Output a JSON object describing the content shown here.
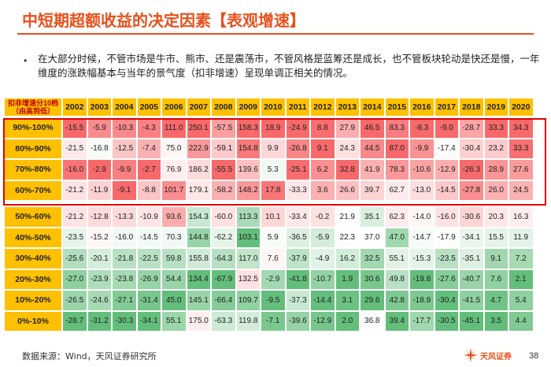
{
  "title": "中短期超额收益的决定因素【表观增速】",
  "bullet": "在大部分时候，不管市场是牛市、熊市、还是震荡市，不管风格是蓝筹还是成长，也不管板块轮动是快还是慢，一年维度的涨跌幅基本与当年的景气度（扣非增速）呈现单调正相关的情况。",
  "header": {
    "corner_line1": "扣非增速分10档",
    "corner_line2": "（由高到低）",
    "years": [
      "2002",
      "2003",
      "2004",
      "2005",
      "2006",
      "2007",
      "2008",
      "2009",
      "2010",
      "2011",
      "2012",
      "2013",
      "2014",
      "2015",
      "2016",
      "2017",
      "2018",
      "2019",
      "2020"
    ]
  },
  "rows": [
    {
      "label": "90%-100%",
      "values": [
        "-15.5",
        "-5.9",
        "-10.3",
        "-4.3",
        "111.0",
        "250.1",
        "-57.5",
        "158.3",
        "18.9",
        "-24.9",
        "8.8",
        "27.9",
        "46.5",
        "83.3",
        "-8.3",
        "-9.0",
        "-28.7",
        "33.3",
        "34.3"
      ]
    },
    {
      "label": "80%-90%",
      "values": [
        "-21.5",
        "-16.8",
        "-12.5",
        "-7.4",
        "75.0",
        "222.9",
        "-59.1",
        "154.8",
        "9.9",
        "-26.8",
        "9.1",
        "24.3",
        "44.5",
        "87.0",
        "-9.9",
        "-17.4",
        "-30.4",
        "23.2",
        "33.3"
      ]
    },
    {
      "label": "70%-80%",
      "values": [
        "-16.0",
        "-2.9",
        "-9.9",
        "-2.7",
        "76.9",
        "186.2",
        "-55.5",
        "139.6",
        "5.3",
        "-25.1",
        "6.2",
        "32.8",
        "41.9",
        "78.3",
        "-10.6",
        "-12.9",
        "-26.3",
        "28.9",
        "27.6"
      ]
    },
    {
      "label": "60%-70%",
      "values": [
        "-21.2",
        "-11.9",
        "-9.1",
        "-8.8",
        "101.7",
        "179.1",
        "-58.2",
        "148.2",
        "17.8",
        "-33.3",
        "3.6",
        "26.6",
        "39.7",
        "62.7",
        "-13.0",
        "-14.5",
        "-27.8",
        "26.0",
        "24.5"
      ]
    },
    {
      "label": "50%-60%",
      "values": [
        "-21.2",
        "-12.8",
        "-13.3",
        "-10.9",
        "93.6",
        "154.3",
        "-60.0",
        "113.3",
        "10.1",
        "-33.4",
        "-0.2",
        "21.9",
        "35.1",
        "62.3",
        "-14.0",
        "-16.0",
        "-30.6",
        "20.3",
        "16.3"
      ]
    },
    {
      "label": "40%-50%",
      "values": [
        "-23.5",
        "-15.2",
        "-16.0",
        "-14.5",
        "70.3",
        "144.8",
        "-62.2",
        "103.1",
        "5.9",
        "-36.5",
        "-5.9",
        "22.3",
        "37.0",
        "47.0",
        "-14.7",
        "-17.9",
        "-34.1",
        "15.5",
        "11.9"
      ]
    },
    {
      "label": "30%-40%",
      "values": [
        "-25.6",
        "-20.1",
        "-21.8",
        "-22.5",
        "59.8",
        "155.8",
        "-64.3",
        "117.0",
        "7.6",
        "-37.9",
        "-4.9",
        "16.2",
        "32.5",
        "55.1",
        "-15.3",
        "-23.5",
        "-35.1",
        "9.1",
        "7.2"
      ]
    },
    {
      "label": "20%-30%",
      "values": [
        "-27.0",
        "-23.9",
        "-23.8",
        "-26.9",
        "54.4",
        "134.4",
        "-67.9",
        "132.5",
        "-2.9",
        "-41.8",
        "-10.7",
        "1.9",
        "30.6",
        "49.8",
        "-19.8",
        "-27.6",
        "-40.7",
        "7.6",
        "2.1"
      ]
    },
    {
      "label": "10%-20%",
      "values": [
        "-26.5",
        "-24.6",
        "-27.1",
        "-31.4",
        "45.0",
        "145.1",
        "-66.4",
        "109.7",
        "-9.5",
        "-37.3",
        "-14.4",
        "3.1",
        "29.6",
        "42.8",
        "-18.9",
        "-30.4",
        "-41.5",
        "4.7",
        "5.4"
      ]
    },
    {
      "label": "0%-10%",
      "values": [
        "-28.7",
        "-31.2",
        "-30.3",
        "-34.1",
        "55.1",
        "175.0",
        "-63.3",
        "119.8",
        "-7.1",
        "-39.6",
        "-12.9",
        "2.0",
        "36.8",
        "39.4",
        "-17.7",
        "-30.5",
        "-45.1",
        "3.5",
        "4.4"
      ]
    }
  ],
  "colors": {
    "accent": "#E8501B",
    "header_bg": "#FFC000",
    "highlight_box": "#E00000",
    "red_strong": "#F8696B",
    "green_strong": "#63BE7B",
    "neutral": "#FFFFFF"
  },
  "footer": {
    "source": "数据来源：Wind，天风证券研究所",
    "logo_text": "天风证券",
    "logo_icon": "tianfeng-logo-icon",
    "page": "38"
  }
}
